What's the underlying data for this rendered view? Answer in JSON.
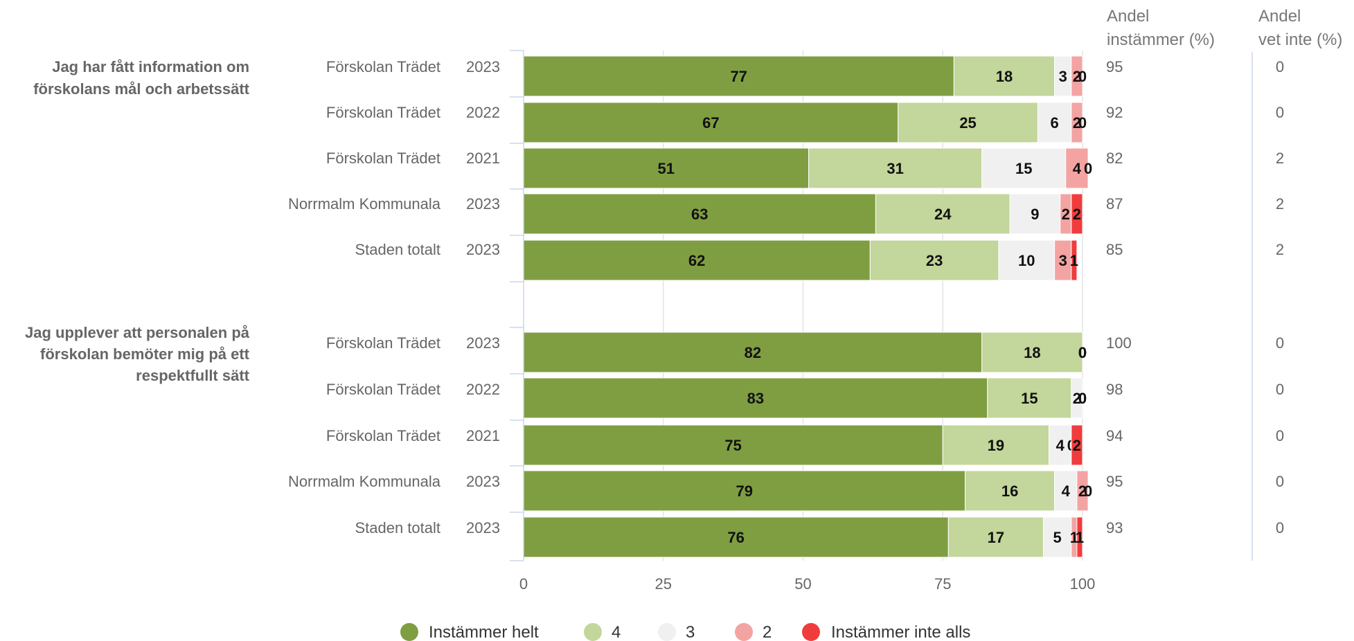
{
  "chart_data": {
    "type": "bar",
    "orientation": "horizontal",
    "stacked": true,
    "xlim": [
      0,
      100
    ],
    "x_ticks": [
      "0",
      "25",
      "50",
      "75",
      "100"
    ],
    "legend_position": "bottom",
    "series": [
      {
        "name": "Instämmer helt",
        "color": "#7f9e42"
      },
      {
        "name": "4",
        "color": "#c3d69b"
      },
      {
        "name": "3",
        "color": "#f0f0f0"
      },
      {
        "name": "2",
        "color": "#f4a3a3"
      },
      {
        "name": "Instämmer inte alls",
        "color": "#f03c3c"
      }
    ],
    "column_headers": {
      "agree": [
        "Andel",
        "instämmer (%)"
      ],
      "dontknow": [
        "Andel",
        "vet inte (%)"
      ]
    },
    "groups": [
      {
        "question_lines": [
          "Jag har fått information om",
          "förskolans mål och arbetssätt"
        ],
        "rows": [
          {
            "unit": "Förskolan Trädet",
            "year": "2023",
            "values": [
              77,
              18,
              3,
              2,
              0
            ],
            "agree": "95",
            "dontknow": "0"
          },
          {
            "unit": "Förskolan Trädet",
            "year": "2022",
            "values": [
              67,
              25,
              6,
              2,
              0
            ],
            "agree": "92",
            "dontknow": "0"
          },
          {
            "unit": "Förskolan Trädet",
            "year": "2021",
            "values": [
              51,
              31,
              15,
              4,
              0
            ],
            "agree": "82",
            "dontknow": "2"
          },
          {
            "unit": "Norrmalm Kommunala",
            "year": "2023",
            "values": [
              63,
              24,
              9,
              2,
              2
            ],
            "agree": "87",
            "dontknow": "2"
          },
          {
            "unit": "Staden totalt",
            "year": "2023",
            "values": [
              62,
              23,
              10,
              3,
              1
            ],
            "agree": "85",
            "dontknow": "2"
          }
        ]
      },
      {
        "question_lines": [
          "Jag upplever att personalen på",
          "förskolan bemöter mig på ett",
          "respektfullt sätt"
        ],
        "rows": [
          {
            "unit": "Förskolan Trädet",
            "year": "2023",
            "values": [
              82,
              18,
              0,
              0,
              0
            ],
            "agree": "100",
            "dontknow": "0"
          },
          {
            "unit": "Förskolan Trädet",
            "year": "2022",
            "values": [
              83,
              15,
              2,
              0,
              0
            ],
            "agree": "98",
            "dontknow": "0"
          },
          {
            "unit": "Förskolan Trädet",
            "year": "2021",
            "values": [
              75,
              19,
              4,
              0,
              2
            ],
            "agree": "94",
            "dontknow": "0"
          },
          {
            "unit": "Norrmalm Kommunala",
            "year": "2023",
            "values": [
              79,
              16,
              4,
              2,
              0
            ],
            "agree": "95",
            "dontknow": "0"
          },
          {
            "unit": "Staden totalt",
            "year": "2023",
            "values": [
              76,
              17,
              5,
              1,
              1
            ],
            "agree": "93",
            "dontknow": "0"
          }
        ]
      }
    ]
  }
}
